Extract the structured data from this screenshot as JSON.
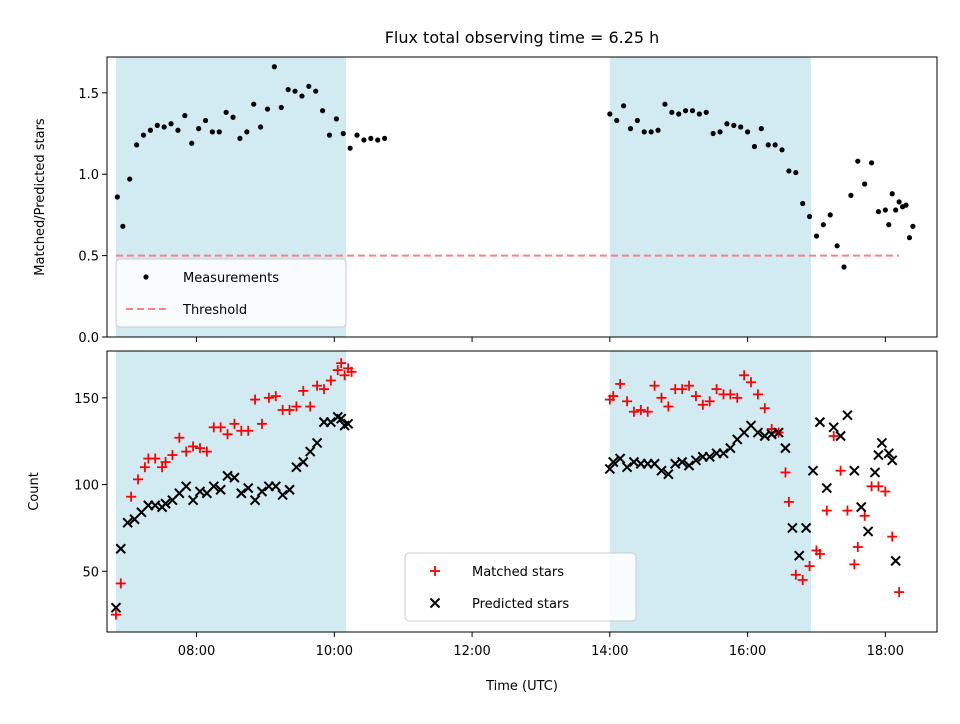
{
  "figure": {
    "title": "Flux total observing time = 6.25 h",
    "xlabel": "Time (UTC)"
  },
  "colors": {
    "shade": "#add8e6",
    "threshold": "#ff7f7f",
    "measurement": "#000000",
    "matched": "#ff0000",
    "predicted": "#000000"
  },
  "chart_data": [
    {
      "type": "scatter",
      "ylabel": "Matched/Predicted stars",
      "ylim": [
        0,
        1.72
      ],
      "yticks": [
        "0.0",
        "0.5",
        "1.0",
        "1.5"
      ],
      "ytick_values": [
        0,
        0.5,
        1.0,
        1.5
      ],
      "xlim_hours": [
        6.7,
        18.75
      ],
      "xtick_values": [
        8,
        10,
        12,
        14,
        16,
        18
      ],
      "shaded_intervals_hours": [
        [
          6.83,
          10.17
        ],
        [
          14.0,
          16.92
        ]
      ],
      "legend": {
        "placement": "lower-left",
        "entries": [
          {
            "label": "Measurements",
            "marker": "dot"
          },
          {
            "label": "Threshold",
            "marker": "dashed-line"
          }
        ]
      },
      "threshold": {
        "name": "Threshold",
        "y": 0.5,
        "x_range_hours": [
          6.83,
          18.2
        ]
      },
      "series": [
        {
          "name": "Measurements",
          "points": [
            [
              6.85,
              0.86
            ],
            [
              6.93,
              0.68
            ],
            [
              7.03,
              0.97
            ],
            [
              7.13,
              1.18
            ],
            [
              7.23,
              1.24
            ],
            [
              7.33,
              1.27
            ],
            [
              7.43,
              1.3
            ],
            [
              7.53,
              1.29
            ],
            [
              7.63,
              1.31
            ],
            [
              7.73,
              1.27
            ],
            [
              7.83,
              1.36
            ],
            [
              7.93,
              1.19
            ],
            [
              8.03,
              1.28
            ],
            [
              8.13,
              1.33
            ],
            [
              8.23,
              1.26
            ],
            [
              8.33,
              1.26
            ],
            [
              8.43,
              1.38
            ],
            [
              8.53,
              1.35
            ],
            [
              8.63,
              1.22
            ],
            [
              8.73,
              1.26
            ],
            [
              8.83,
              1.43
            ],
            [
              8.93,
              1.29
            ],
            [
              9.03,
              1.4
            ],
            [
              9.13,
              1.66
            ],
            [
              9.23,
              1.41
            ],
            [
              9.33,
              1.52
            ],
            [
              9.43,
              1.51
            ],
            [
              9.53,
              1.48
            ],
            [
              9.63,
              1.54
            ],
            [
              9.73,
              1.51
            ],
            [
              9.83,
              1.39
            ],
            [
              9.93,
              1.24
            ],
            [
              10.03,
              1.34
            ],
            [
              10.13,
              1.25
            ],
            [
              10.23,
              1.16
            ],
            [
              10.33,
              1.24
            ],
            [
              10.43,
              1.21
            ],
            [
              10.53,
              1.22
            ],
            [
              10.63,
              1.21
            ],
            [
              10.73,
              1.22
            ],
            [
              14.0,
              1.37
            ],
            [
              14.1,
              1.33
            ],
            [
              14.2,
              1.42
            ],
            [
              14.3,
              1.28
            ],
            [
              14.4,
              1.33
            ],
            [
              14.5,
              1.26
            ],
            [
              14.6,
              1.26
            ],
            [
              14.7,
              1.27
            ],
            [
              14.8,
              1.43
            ],
            [
              14.9,
              1.38
            ],
            [
              15.0,
              1.37
            ],
            [
              15.1,
              1.39
            ],
            [
              15.2,
              1.39
            ],
            [
              15.3,
              1.37
            ],
            [
              15.4,
              1.38
            ],
            [
              15.5,
              1.25
            ],
            [
              15.6,
              1.26
            ],
            [
              15.7,
              1.31
            ],
            [
              15.8,
              1.3
            ],
            [
              15.9,
              1.29
            ],
            [
              16.0,
              1.26
            ],
            [
              16.1,
              1.17
            ],
            [
              16.2,
              1.28
            ],
            [
              16.3,
              1.18
            ],
            [
              16.4,
              1.18
            ],
            [
              16.5,
              1.15
            ],
            [
              16.6,
              1.02
            ],
            [
              16.7,
              1.01
            ],
            [
              16.8,
              0.82
            ],
            [
              16.9,
              0.74
            ],
            [
              17.0,
              0.62
            ],
            [
              17.1,
              0.69
            ],
            [
              17.2,
              0.75
            ],
            [
              17.3,
              0.56
            ],
            [
              17.4,
              0.43
            ],
            [
              17.5,
              0.87
            ],
            [
              17.6,
              1.08
            ],
            [
              17.7,
              0.94
            ],
            [
              17.8,
              1.07
            ],
            [
              17.9,
              0.77
            ],
            [
              18.0,
              0.78
            ],
            [
              18.05,
              0.69
            ],
            [
              18.1,
              0.88
            ],
            [
              18.15,
              0.78
            ],
            [
              18.2,
              0.83
            ],
            [
              18.25,
              0.8
            ],
            [
              18.3,
              0.81
            ],
            [
              18.35,
              0.61
            ],
            [
              18.4,
              0.68
            ]
          ]
        }
      ]
    },
    {
      "type": "scatter",
      "ylabel": "Count",
      "ylim": [
        15,
        177
      ],
      "yticks": [
        "50",
        "100",
        "150"
      ],
      "ytick_values": [
        50,
        100,
        150
      ],
      "xlim_hours": [
        6.7,
        18.75
      ],
      "xtick_values": [
        8,
        10,
        12,
        14,
        16,
        18
      ],
      "xtick_labels": [
        "08:00",
        "10:00",
        "12:00",
        "14:00",
        "16:00",
        "18:00"
      ],
      "shaded_intervals_hours": [
        [
          6.83,
          10.17
        ],
        [
          14.0,
          16.92
        ]
      ],
      "legend": {
        "placement": "lower-center",
        "entries": [
          {
            "label": "Matched stars",
            "marker": "plus"
          },
          {
            "label": "Predicted stars",
            "marker": "x"
          }
        ]
      },
      "series": [
        {
          "name": "Matched stars",
          "marker": "plus",
          "points": [
            [
              6.83,
              25
            ],
            [
              6.9,
              43
            ],
            [
              7.05,
              93
            ],
            [
              7.15,
              103
            ],
            [
              7.25,
              110
            ],
            [
              7.3,
              115
            ],
            [
              7.4,
              115
            ],
            [
              7.5,
              110
            ],
            [
              7.55,
              113
            ],
            [
              7.65,
              117
            ],
            [
              7.75,
              127
            ],
            [
              7.85,
              119
            ],
            [
              7.95,
              122
            ],
            [
              8.05,
              121
            ],
            [
              8.15,
              119
            ],
            [
              8.25,
              133
            ],
            [
              8.35,
              133
            ],
            [
              8.45,
              129
            ],
            [
              8.55,
              135
            ],
            [
              8.65,
              131
            ],
            [
              8.75,
              131
            ],
            [
              8.85,
              149
            ],
            [
              8.95,
              135
            ],
            [
              9.05,
              150
            ],
            [
              9.15,
              151
            ],
            [
              9.25,
              143
            ],
            [
              9.35,
              143
            ],
            [
              9.45,
              145
            ],
            [
              9.55,
              154
            ],
            [
              9.65,
              145
            ],
            [
              9.75,
              157
            ],
            [
              9.85,
              155
            ],
            [
              9.95,
              160
            ],
            [
              10.05,
              166
            ],
            [
              10.1,
              170
            ],
            [
              10.15,
              163
            ],
            [
              10.2,
              167
            ],
            [
              10.25,
              165
            ],
            [
              14.0,
              149
            ],
            [
              14.05,
              151
            ],
            [
              14.15,
              158
            ],
            [
              14.25,
              148
            ],
            [
              14.35,
              142
            ],
            [
              14.45,
              143
            ],
            [
              14.55,
              142
            ],
            [
              14.65,
              157
            ],
            [
              14.75,
              150
            ],
            [
              14.85,
              145
            ],
            [
              14.95,
              155
            ],
            [
              15.05,
              155
            ],
            [
              15.15,
              157
            ],
            [
              15.25,
              151
            ],
            [
              15.35,
              146
            ],
            [
              15.45,
              148
            ],
            [
              15.55,
              155
            ],
            [
              15.65,
              152
            ],
            [
              15.75,
              152
            ],
            [
              15.85,
              150
            ],
            [
              15.95,
              163
            ],
            [
              16.05,
              159
            ],
            [
              16.15,
              152
            ],
            [
              16.25,
              144
            ],
            [
              16.35,
              132
            ],
            [
              16.45,
              130
            ],
            [
              16.55,
              107
            ],
            [
              16.6,
              90
            ],
            [
              16.7,
              48
            ],
            [
              16.8,
              45
            ],
            [
              16.9,
              53
            ],
            [
              17.0,
              62
            ],
            [
              17.05,
              60
            ],
            [
              17.15,
              85
            ],
            [
              17.25,
              128
            ],
            [
              17.35,
              108
            ],
            [
              17.45,
              85
            ],
            [
              17.55,
              54
            ],
            [
              17.6,
              64
            ],
            [
              17.7,
              82
            ],
            [
              17.8,
              99
            ],
            [
              17.9,
              99
            ],
            [
              18.0,
              96
            ],
            [
              18.1,
              70
            ],
            [
              18.2,
              38
            ]
          ]
        },
        {
          "name": "Predicted stars",
          "marker": "x",
          "points": [
            [
              6.83,
              29
            ],
            [
              6.9,
              63
            ],
            [
              7.0,
              78
            ],
            [
              7.1,
              80
            ],
            [
              7.2,
              84
            ],
            [
              7.3,
              88
            ],
            [
              7.4,
              88
            ],
            [
              7.5,
              87
            ],
            [
              7.55,
              89
            ],
            [
              7.65,
              91
            ],
            [
              7.75,
              95
            ],
            [
              7.85,
              99
            ],
            [
              7.95,
              91
            ],
            [
              8.05,
              96
            ],
            [
              8.15,
              95
            ],
            [
              8.25,
              99
            ],
            [
              8.35,
              97
            ],
            [
              8.45,
              105
            ],
            [
              8.55,
              104
            ],
            [
              8.65,
              95
            ],
            [
              8.75,
              98
            ],
            [
              8.85,
              91
            ],
            [
              8.95,
              96
            ],
            [
              9.05,
              99
            ],
            [
              9.15,
              99
            ],
            [
              9.25,
              94
            ],
            [
              9.35,
              97
            ],
            [
              9.45,
              110
            ],
            [
              9.55,
              113
            ],
            [
              9.65,
              119
            ],
            [
              9.75,
              124
            ],
            [
              9.85,
              136
            ],
            [
              9.95,
              136
            ],
            [
              10.05,
              139
            ],
            [
              10.1,
              138
            ],
            [
              10.15,
              134
            ],
            [
              10.2,
              135
            ],
            [
              14.0,
              109
            ],
            [
              14.05,
              113
            ],
            [
              14.15,
              115
            ],
            [
              14.25,
              110
            ],
            [
              14.35,
              113
            ],
            [
              14.45,
              112
            ],
            [
              14.55,
              112
            ],
            [
              14.65,
              112
            ],
            [
              14.75,
              108
            ],
            [
              14.85,
              106
            ],
            [
              14.95,
              112
            ],
            [
              15.05,
              113
            ],
            [
              15.15,
              111
            ],
            [
              15.25,
              114
            ],
            [
              15.35,
              116
            ],
            [
              15.45,
              116
            ],
            [
              15.55,
              118
            ],
            [
              15.65,
              118
            ],
            [
              15.75,
              121
            ],
            [
              15.85,
              126
            ],
            [
              15.95,
              130
            ],
            [
              16.05,
              134
            ],
            [
              16.15,
              130
            ],
            [
              16.25,
              128
            ],
            [
              16.35,
              129
            ],
            [
              16.45,
              130
            ],
            [
              16.55,
              121
            ],
            [
              16.65,
              75
            ],
            [
              16.75,
              59
            ],
            [
              16.85,
              75
            ],
            [
              16.95,
              108
            ],
            [
              17.05,
              136
            ],
            [
              17.15,
              98
            ],
            [
              17.25,
              133
            ],
            [
              17.35,
              128
            ],
            [
              17.45,
              140
            ],
            [
              17.55,
              108
            ],
            [
              17.65,
              87
            ],
            [
              17.75,
              73
            ],
            [
              17.85,
              107
            ],
            [
              17.9,
              117
            ],
            [
              17.95,
              124
            ],
            [
              18.05,
              118
            ],
            [
              18.1,
              114
            ],
            [
              18.15,
              56
            ]
          ]
        }
      ]
    }
  ]
}
